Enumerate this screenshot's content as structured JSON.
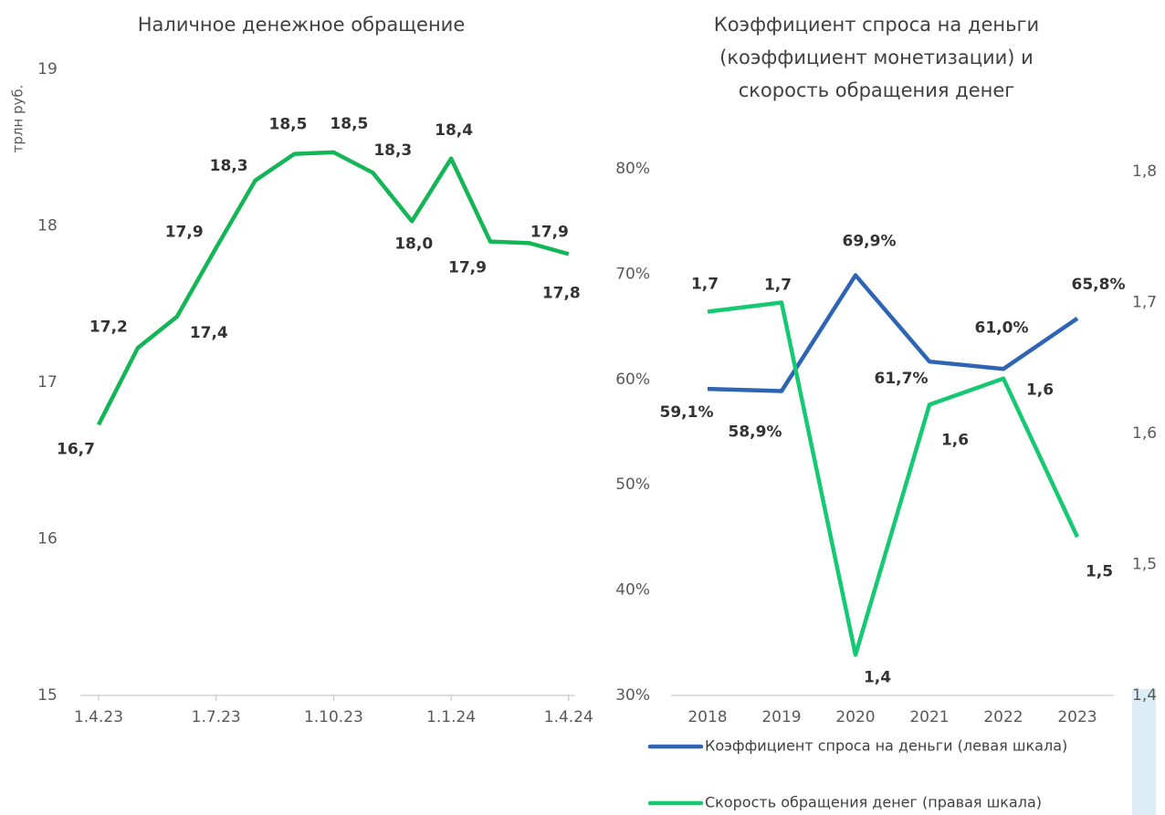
{
  "chart_data": [
    {
      "type": "line",
      "title": "Наличное денежное обращение",
      "y_label": "трлн руб.",
      "categories": [
        "1.4.23",
        null,
        null,
        "1.7.23",
        null,
        null,
        "1.10.23",
        null,
        null,
        "1.1.24",
        null,
        null,
        "1.4.24"
      ],
      "values": [
        16.73,
        17.22,
        17.42,
        17.86,
        18.29,
        18.46,
        18.47,
        18.34,
        18.03,
        18.43,
        17.9,
        17.89,
        17.82
      ],
      "value_labels": [
        "16,7",
        "17,2",
        "17,4",
        "17,9",
        "18,3",
        "18,5",
        "18,5",
        "18,3",
        "18,0",
        "18,4",
        "17,9",
        "17,9",
        "17,8"
      ],
      "color": "#13b556",
      "ylim": [
        15,
        19
      ],
      "yticks": [
        15,
        16,
        17,
        18,
        19
      ]
    },
    {
      "type": "line",
      "title": [
        "Коэффициент спроса на деньги",
        "(коэффициент монетизации) и",
        "скорость обращения денег"
      ],
      "categories": [
        "2018",
        "2019",
        "2020",
        "2021",
        "2022",
        "2023"
      ],
      "series": [
        {
          "name": "Коэффициент спроса на деньги (левая шкала)",
          "color": "#2e64b4",
          "values": [
            59.1,
            58.9,
            69.9,
            61.7,
            61.0,
            65.8
          ],
          "value_labels": [
            "59,1%",
            "58,9%",
            "69,9%",
            "61,7%",
            "61,0%",
            "65,8%"
          ]
        },
        {
          "name": "Скорость обращения денег (правая шкала)",
          "color": "#15c872",
          "axis": "y2",
          "values": [
            1.693,
            1.7,
            1.431,
            1.622,
            1.642,
            1.521
          ],
          "value_labels": [
            "1,7",
            "1,7",
            "1,4",
            "1,6",
            "1,6",
            "1,5"
          ]
        }
      ],
      "ylim": [
        30,
        80
      ],
      "yticks": [
        {
          "value": 30,
          "label": "30%"
        },
        {
          "value": 40,
          "label": "40%"
        },
        {
          "value": 50,
          "label": "50%"
        },
        {
          "value": 60,
          "label": "60%"
        },
        {
          "value": 70,
          "label": "70%"
        },
        {
          "value": 80,
          "label": "80%"
        }
      ],
      "y2lim": [
        1.4,
        1.8
      ],
      "y2ticks": [
        {
          "value": 1.4,
          "label": "1,4"
        },
        {
          "value": 1.5,
          "label": "1,5"
        },
        {
          "value": 1.6,
          "label": "1,6"
        },
        {
          "value": 1.7,
          "label": "1,7"
        },
        {
          "value": 1.8,
          "label": "1,8"
        }
      ]
    }
  ]
}
